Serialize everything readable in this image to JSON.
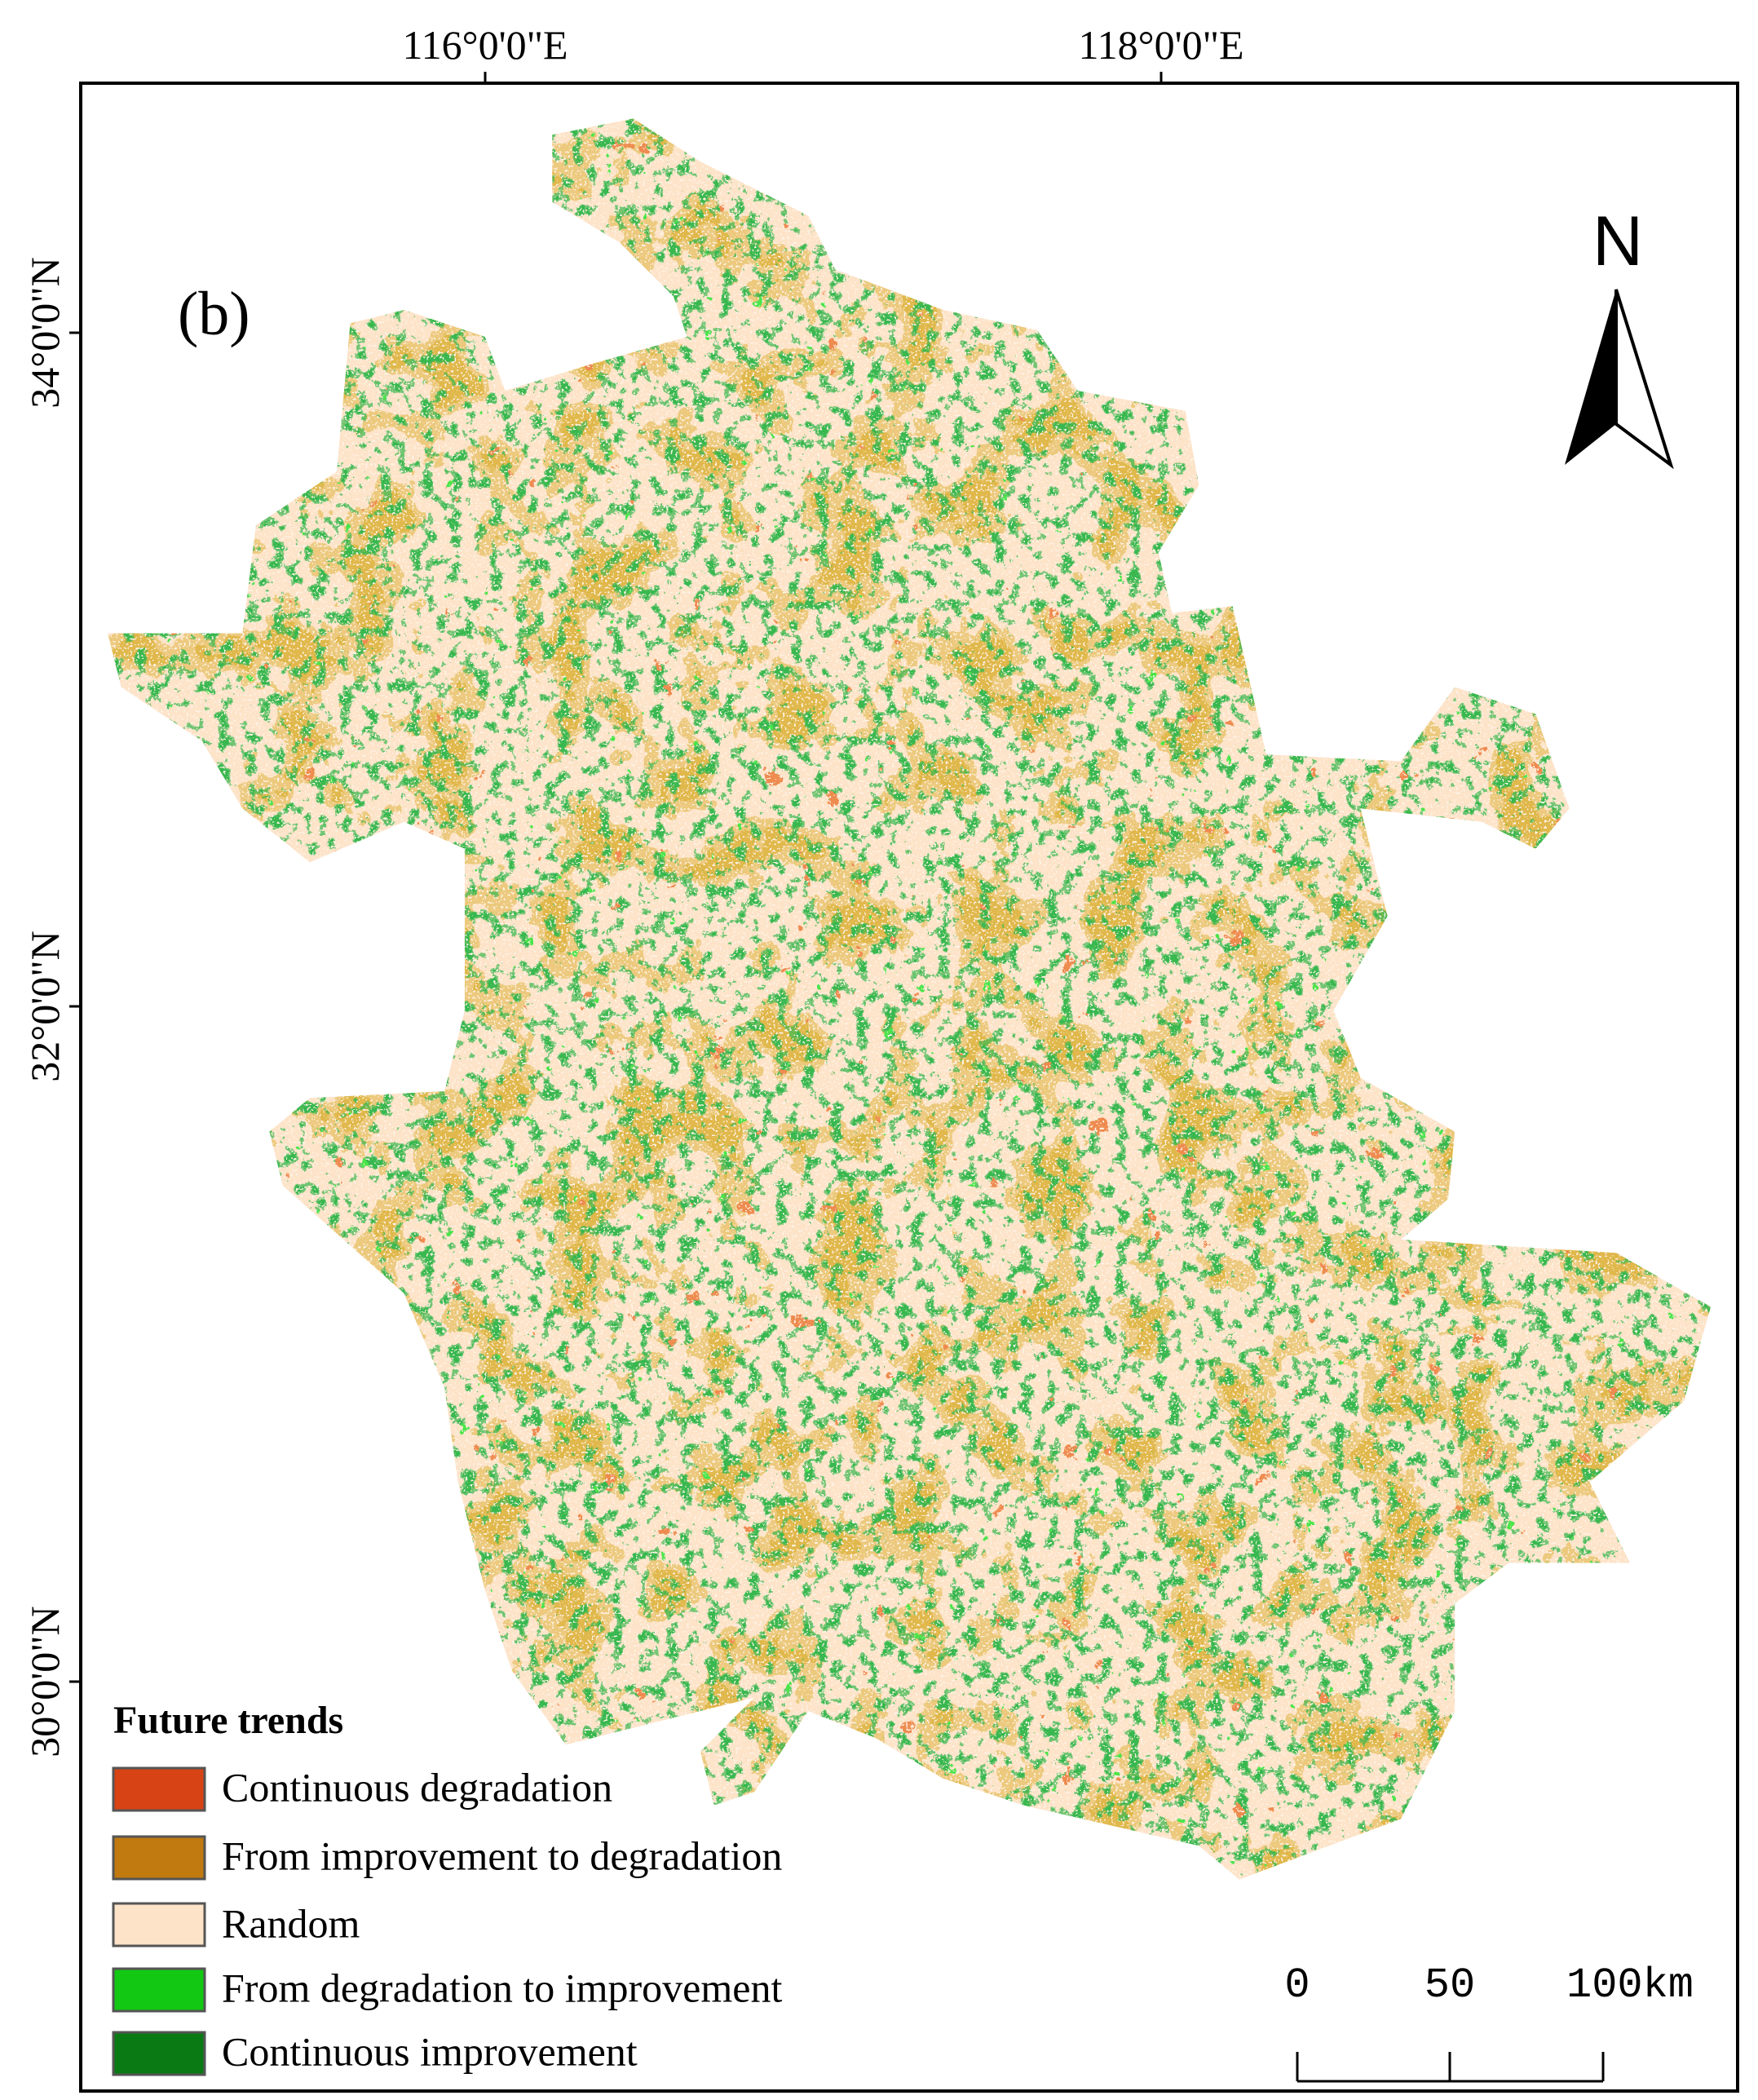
{
  "panel_label": "(b)",
  "north": "N",
  "axes": {
    "x_labels": [
      "116°0'0\"E",
      "118°0'0\"E"
    ],
    "y_labels": [
      "34°0'0\"N",
      "32°0'0\"N",
      "30°0'0\"N"
    ]
  },
  "legend": {
    "title": "Future trends",
    "items": [
      {
        "label": "Continuous degradation",
        "color": "#d84315"
      },
      {
        "label": "From improvement to degradation",
        "color": "#c07a10"
      },
      {
        "label": "Random",
        "color": "#fde3c8"
      },
      {
        "label": "From degradation to improvement",
        "color": "#12c812"
      },
      {
        "label": "Continuous improvement",
        "color": "#0a7a14"
      }
    ]
  },
  "scale_bar": {
    "labels": [
      "0",
      "50",
      "100km"
    ]
  }
}
